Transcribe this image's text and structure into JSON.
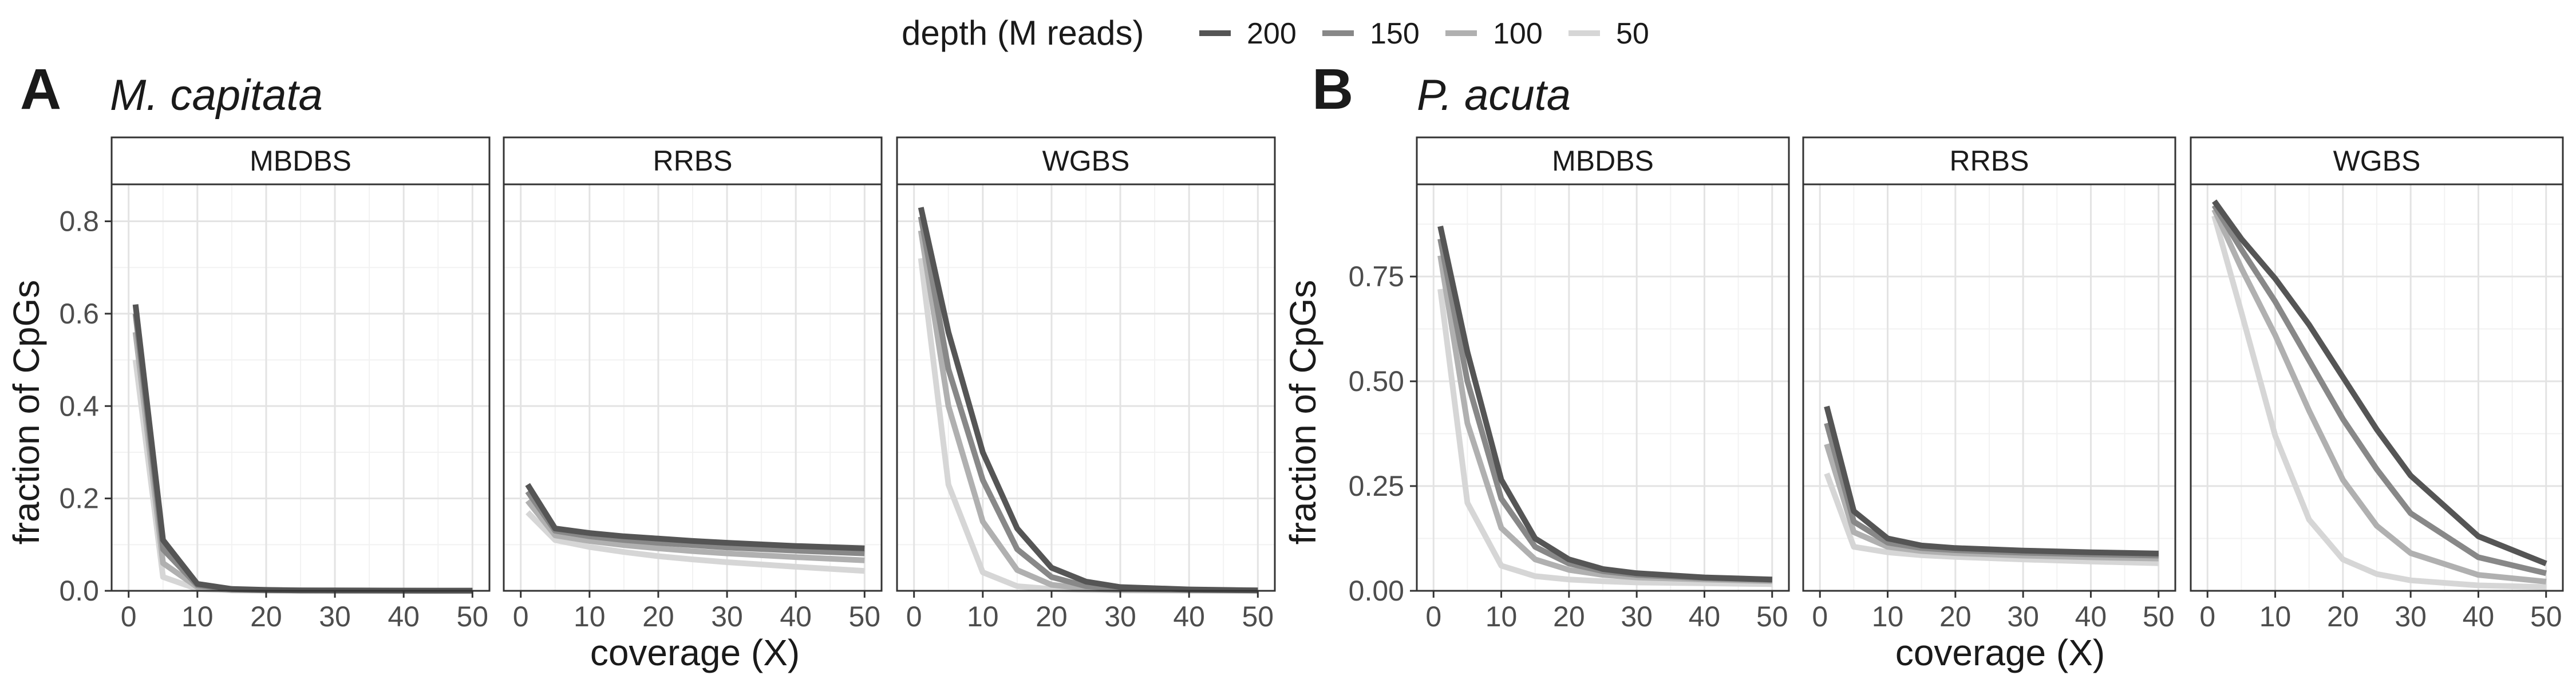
{
  "legend": {
    "title": "depth (M reads)",
    "items": [
      {
        "label": "200",
        "color": "#555555"
      },
      {
        "label": "150",
        "color": "#888888"
      },
      {
        "label": "100",
        "color": "#b0b0b0"
      },
      {
        "label": "50",
        "color": "#d6d6d6"
      }
    ]
  },
  "panels": [
    {
      "letter": "A",
      "title": "M. capitata",
      "ylabel": "fraction of CpGs",
      "xlabel": "coverage (X)"
    },
    {
      "letter": "B",
      "title": "P. acuta",
      "ylabel": "fraction of CpGs",
      "xlabel": "coverage (X)"
    }
  ],
  "chart_data": [
    {
      "type": "line",
      "species": "M. capitata",
      "xlabel": "coverage (X)",
      "ylabel": "fraction of CpGs",
      "xlim": [
        0,
        50
      ],
      "ylim": [
        0,
        0.88
      ],
      "x_ticks": [
        0,
        10,
        20,
        30,
        40,
        50
      ],
      "y_ticks": [
        0,
        0.2,
        0.4,
        0.6,
        0.8
      ],
      "y_tick_labels": [
        "0.0",
        "0.2",
        "0.4",
        "0.6",
        "0.8"
      ],
      "grid": true,
      "facets": [
        {
          "method": "MBDBS",
          "x": [
            1,
            5,
            10,
            15,
            20,
            25,
            30,
            40,
            50
          ],
          "series": [
            {
              "name": "200",
              "values": [
                0.62,
                0.11,
                0.015,
                0.004,
                0.002,
                0.001,
                0.001,
                0.0005,
                0.0003
              ]
            },
            {
              "name": "150",
              "values": [
                0.6,
                0.09,
                0.012,
                0.003,
                0.0015,
                0.001,
                0.0005,
                0.0003,
                0.0002
              ]
            },
            {
              "name": "100",
              "values": [
                0.56,
                0.06,
                0.008,
                0.002,
                0.001,
                0.0005,
                0.0003,
                0.0002,
                0.0001
              ]
            },
            {
              "name": "50",
              "values": [
                0.5,
                0.03,
                0.004,
                0.001,
                0.0005,
                0.0003,
                0.0002,
                0.0001,
                0.0001
              ]
            }
          ]
        },
        {
          "method": "RRBS",
          "x": [
            1,
            5,
            10,
            15,
            20,
            25,
            30,
            40,
            50
          ],
          "series": [
            {
              "name": "200",
              "values": [
                0.23,
                0.135,
                0.125,
                0.118,
                0.113,
                0.108,
                0.104,
                0.097,
                0.092
              ]
            },
            {
              "name": "150",
              "values": [
                0.215,
                0.13,
                0.118,
                0.11,
                0.104,
                0.099,
                0.094,
                0.087,
                0.081
              ]
            },
            {
              "name": "100",
              "values": [
                0.195,
                0.12,
                0.108,
                0.099,
                0.092,
                0.086,
                0.081,
                0.073,
                0.066
              ]
            },
            {
              "name": "50",
              "values": [
                0.17,
                0.11,
                0.095,
                0.084,
                0.075,
                0.068,
                0.062,
                0.052,
                0.043
              ]
            }
          ]
        },
        {
          "method": "WGBS",
          "x": [
            1,
            5,
            10,
            15,
            20,
            25,
            30,
            40,
            50
          ],
          "series": [
            {
              "name": "200",
              "values": [
                0.83,
                0.56,
                0.3,
                0.135,
                0.05,
                0.02,
                0.008,
                0.003,
                0.001
              ]
            },
            {
              "name": "150",
              "values": [
                0.81,
                0.48,
                0.24,
                0.09,
                0.03,
                0.01,
                0.005,
                0.002,
                0.001
              ]
            },
            {
              "name": "100",
              "values": [
                0.78,
                0.4,
                0.15,
                0.045,
                0.013,
                0.005,
                0.002,
                0.001,
                0.0005
              ]
            },
            {
              "name": "50",
              "values": [
                0.72,
                0.23,
                0.04,
                0.01,
                0.004,
                0.002,
                0.001,
                0.0005,
                0.0002
              ]
            }
          ]
        }
      ]
    },
    {
      "type": "line",
      "species": "P. acuta",
      "xlabel": "coverage (X)",
      "ylabel": "fraction of CpGs",
      "xlim": [
        0,
        50
      ],
      "ylim": [
        0,
        0.97
      ],
      "x_ticks": [
        0,
        10,
        20,
        30,
        40,
        50
      ],
      "y_ticks": [
        0,
        0.25,
        0.5,
        0.75
      ],
      "y_tick_labels": [
        "0.00",
        "0.25",
        "0.50",
        "0.75"
      ],
      "grid": true,
      "facets": [
        {
          "method": "MBDBS",
          "x": [
            1,
            5,
            10,
            15,
            20,
            25,
            30,
            40,
            50
          ],
          "series": [
            {
              "name": "200",
              "values": [
                0.87,
                0.57,
                0.265,
                0.125,
                0.075,
                0.052,
                0.042,
                0.032,
                0.027
              ]
            },
            {
              "name": "150",
              "values": [
                0.84,
                0.5,
                0.22,
                0.105,
                0.065,
                0.047,
                0.038,
                0.03,
                0.026
              ]
            },
            {
              "name": "100",
              "values": [
                0.8,
                0.4,
                0.15,
                0.075,
                0.05,
                0.038,
                0.032,
                0.027,
                0.023
              ]
            },
            {
              "name": "50",
              "values": [
                0.72,
                0.21,
                0.06,
                0.035,
                0.027,
                0.023,
                0.02,
                0.018,
                0.016
              ]
            }
          ]
        },
        {
          "method": "RRBS",
          "x": [
            1,
            5,
            10,
            15,
            20,
            25,
            30,
            40,
            50
          ],
          "series": [
            {
              "name": "200",
              "values": [
                0.44,
                0.19,
                0.125,
                0.108,
                0.102,
                0.099,
                0.096,
                0.092,
                0.089
              ]
            },
            {
              "name": "150",
              "values": [
                0.4,
                0.165,
                0.115,
                0.102,
                0.097,
                0.094,
                0.091,
                0.087,
                0.084
              ]
            },
            {
              "name": "100",
              "values": [
                0.35,
                0.14,
                0.105,
                0.095,
                0.09,
                0.087,
                0.084,
                0.08,
                0.077
              ]
            },
            {
              "name": "50",
              "values": [
                0.28,
                0.105,
                0.092,
                0.085,
                0.081,
                0.078,
                0.075,
                0.07,
                0.066
              ]
            }
          ]
        },
        {
          "method": "WGBS",
          "x": [
            1,
            5,
            10,
            15,
            20,
            25,
            30,
            40,
            50
          ],
          "series": [
            {
              "name": "200",
              "values": [
                0.93,
                0.84,
                0.745,
                0.635,
                0.51,
                0.385,
                0.275,
                0.13,
                0.065
              ]
            },
            {
              "name": "150",
              "values": [
                0.92,
                0.815,
                0.69,
                0.55,
                0.41,
                0.29,
                0.185,
                0.08,
                0.042
              ]
            },
            {
              "name": "100",
              "values": [
                0.91,
                0.77,
                0.61,
                0.43,
                0.265,
                0.155,
                0.09,
                0.038,
                0.022
              ]
            },
            {
              "name": "50",
              "values": [
                0.895,
                0.665,
                0.37,
                0.17,
                0.075,
                0.04,
                0.025,
                0.013,
                0.009
              ]
            }
          ]
        }
      ]
    }
  ]
}
